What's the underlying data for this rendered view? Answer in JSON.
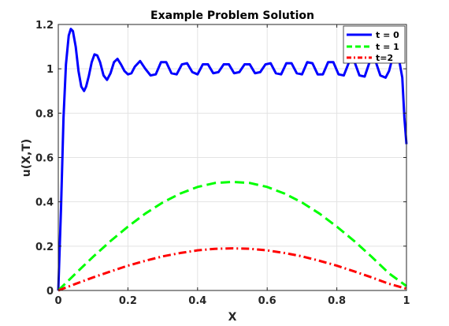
{
  "chart_data": {
    "type": "line",
    "title": "Example Problem Solution",
    "xlabel": "X",
    "ylabel": "u(X,T)",
    "xlim": [
      0,
      1
    ],
    "ylim": [
      0,
      1.2
    ],
    "xticks": [
      "0",
      "0.2",
      "0.4",
      "0.6",
      "0.8",
      "1"
    ],
    "yticks": [
      "0",
      "0.2",
      "0.4",
      "0.6",
      "0.8",
      "1",
      "1.2"
    ],
    "grid": true,
    "legend_position": "top-right",
    "series": [
      {
        "name": "t = 0",
        "color": "#0000ff",
        "style": "solid",
        "x": [
          0,
          0.008,
          0.015,
          0.022,
          0.03,
          0.036,
          0.042,
          0.05,
          0.058,
          0.066,
          0.074,
          0.08,
          0.088,
          0.096,
          0.104,
          0.112,
          0.12,
          0.13,
          0.14,
          0.15,
          0.16,
          0.17,
          0.18,
          0.19,
          0.2,
          0.21,
          0.22,
          0.235,
          0.25,
          0.265,
          0.28,
          0.295,
          0.31,
          0.325,
          0.34,
          0.355,
          0.37,
          0.385,
          0.4,
          0.415,
          0.43,
          0.445,
          0.46,
          0.475,
          0.49,
          0.505,
          0.52,
          0.535,
          0.55,
          0.565,
          0.58,
          0.595,
          0.61,
          0.625,
          0.64,
          0.655,
          0.67,
          0.685,
          0.7,
          0.715,
          0.73,
          0.745,
          0.76,
          0.775,
          0.79,
          0.805,
          0.82,
          0.835,
          0.85,
          0.865,
          0.88,
          0.895,
          0.91,
          0.925,
          0.94,
          0.95,
          0.96,
          0.97,
          0.98,
          0.988,
          0.994,
          1.0
        ],
        "y": [
          0,
          0.38,
          0.78,
          1.02,
          1.15,
          1.18,
          1.17,
          1.1,
          0.99,
          0.92,
          0.9,
          0.92,
          0.97,
          1.03,
          1.065,
          1.06,
          1.03,
          0.97,
          0.95,
          0.98,
          1.03,
          1.045,
          1.02,
          0.99,
          0.975,
          0.98,
          1.01,
          1.035,
          1.0,
          0.97,
          0.975,
          1.03,
          1.03,
          0.98,
          0.975,
          1.02,
          1.025,
          0.985,
          0.975,
          1.02,
          1.02,
          0.98,
          0.985,
          1.02,
          1.02,
          0.98,
          0.985,
          1.02,
          1.02,
          0.98,
          0.985,
          1.02,
          1.025,
          0.98,
          0.975,
          1.025,
          1.025,
          0.98,
          0.975,
          1.03,
          1.025,
          0.975,
          0.975,
          1.03,
          1.03,
          0.975,
          0.97,
          1.03,
          1.035,
          0.97,
          0.965,
          1.035,
          1.04,
          0.97,
          0.96,
          0.99,
          1.05,
          1.065,
          1.03,
          0.96,
          0.78,
          0.66
        ]
      },
      {
        "name": "t = 1",
        "color": "#00ff00",
        "style": "dashed",
        "x": [
          0,
          0.05,
          0.1,
          0.15,
          0.2,
          0.25,
          0.3,
          0.35,
          0.4,
          0.45,
          0.5,
          0.55,
          0.6,
          0.65,
          0.7,
          0.75,
          0.8,
          0.85,
          0.9,
          0.95,
          1.0
        ],
        "y": [
          0,
          0.077,
          0.152,
          0.223,
          0.288,
          0.347,
          0.397,
          0.437,
          0.467,
          0.485,
          0.49,
          0.485,
          0.467,
          0.437,
          0.397,
          0.347,
          0.288,
          0.223,
          0.152,
          0.077,
          0.02
        ]
      },
      {
        "name": "t=2",
        "color": "#ff0000",
        "style": "dashdot",
        "x": [
          0,
          0.05,
          0.1,
          0.15,
          0.2,
          0.25,
          0.3,
          0.35,
          0.4,
          0.45,
          0.5,
          0.55,
          0.6,
          0.65,
          0.7,
          0.75,
          0.8,
          0.85,
          0.9,
          0.95,
          1.0
        ],
        "y": [
          0,
          0.03,
          0.059,
          0.086,
          0.112,
          0.134,
          0.154,
          0.169,
          0.181,
          0.188,
          0.19,
          0.188,
          0.181,
          0.169,
          0.154,
          0.134,
          0.112,
          0.086,
          0.059,
          0.03,
          0.008
        ]
      }
    ]
  }
}
